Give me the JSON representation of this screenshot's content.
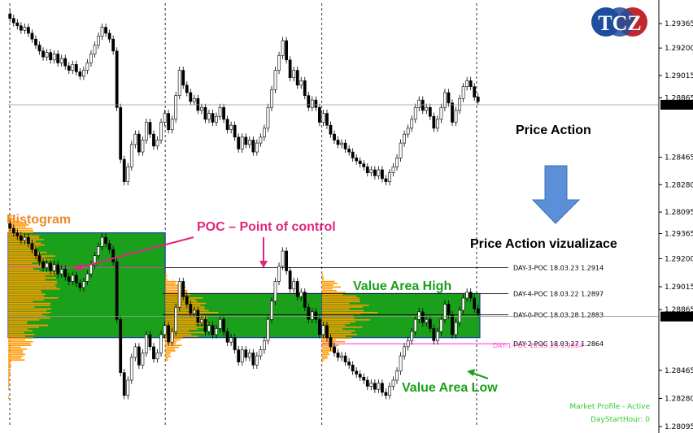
{
  "logo": {
    "text": "TCZ",
    "colors": [
      "#1f4e9c",
      "#c0282d"
    ]
  },
  "chart_data": [
    {
      "type": "candlestick",
      "title": "",
      "y_ticks": [
        "1.29365",
        "1.29200",
        "1.29015",
        "1.28865",
        "1.28465",
        "1.28280",
        "1.28095"
      ],
      "current_price": "1.28818",
      "ylim": [
        1.2809,
        1.2948
      ],
      "grid": false,
      "day_separators": 4,
      "close": [
        1.294,
        1.2937,
        1.2935,
        1.2932,
        1.2934,
        1.293,
        1.2926,
        1.2922,
        1.2918,
        1.2914,
        1.2917,
        1.2912,
        1.2916,
        1.291,
        1.2913,
        1.2908,
        1.2905,
        1.2909,
        1.2904,
        1.2901,
        1.2905,
        1.291,
        1.2916,
        1.2922,
        1.2928,
        1.2934,
        1.293,
        1.2926,
        1.2918,
        1.288,
        1.2845,
        1.283,
        1.284,
        1.2855,
        1.2862,
        1.285,
        1.2858,
        1.287,
        1.2862,
        1.2854,
        1.2858,
        1.287,
        1.2876,
        1.2865,
        1.2872,
        1.2888,
        1.2905,
        1.2895,
        1.289,
        1.2884,
        1.2886,
        1.2878,
        1.288,
        1.2872,
        1.2876,
        1.287,
        1.2874,
        1.288,
        1.2872,
        1.2865,
        1.2868,
        1.286,
        1.2852,
        1.286,
        1.2855,
        1.2858,
        1.285,
        1.2856,
        1.286,
        1.2866,
        1.288,
        1.2892,
        1.2905,
        1.2915,
        1.2925,
        1.2912,
        1.29,
        1.2905,
        1.2895,
        1.2898,
        1.2888,
        1.288,
        1.2885,
        1.288,
        1.287,
        1.2876,
        1.2868,
        1.2862,
        1.2858,
        1.2855,
        1.2856,
        1.2852,
        1.285,
        1.2846,
        1.2844,
        1.2842,
        1.284,
        1.2836,
        1.2838,
        1.2834,
        1.2838,
        1.2832,
        1.283,
        1.2836,
        1.284,
        1.2846,
        1.2856,
        1.2862,
        1.2866,
        1.2872,
        1.288,
        1.2885,
        1.2878,
        1.288,
        1.2874,
        1.2866,
        1.2872,
        1.288,
        1.289,
        1.2883,
        1.287,
        1.2878,
        1.2886,
        1.2894,
        1.2898,
        1.2894,
        1.2887,
        1.2884
      ]
    },
    {
      "type": "market_profile",
      "y_ticks": [
        "1.29365",
        "1.29200",
        "1.29015",
        "1.28865",
        "1.28465",
        "1.28280",
        "1.28095"
      ],
      "current_price": "1.28819",
      "ylim": [
        1.2809,
        1.2948
      ],
      "close": [
        1.294,
        1.2937,
        1.2935,
        1.2932,
        1.2934,
        1.293,
        1.2926,
        1.2922,
        1.2918,
        1.2914,
        1.2917,
        1.2912,
        1.2916,
        1.291,
        1.2913,
        1.2908,
        1.2905,
        1.2909,
        1.2904,
        1.2901,
        1.2905,
        1.291,
        1.2916,
        1.2922,
        1.2928,
        1.2934,
        1.293,
        1.2926,
        1.2918,
        1.288,
        1.2845,
        1.283,
        1.284,
        1.2855,
        1.2862,
        1.285,
        1.2858,
        1.287,
        1.2862,
        1.2854,
        1.2858,
        1.287,
        1.2876,
        1.2865,
        1.2872,
        1.2888,
        1.2905,
        1.2895,
        1.289,
        1.2884,
        1.2886,
        1.2878,
        1.288,
        1.2872,
        1.2876,
        1.287,
        1.2874,
        1.288,
        1.2872,
        1.2865,
        1.2868,
        1.286,
        1.2852,
        1.286,
        1.2855,
        1.2858,
        1.285,
        1.2856,
        1.286,
        1.2866,
        1.288,
        1.2892,
        1.2905,
        1.2915,
        1.2925,
        1.2912,
        1.29,
        1.2905,
        1.2895,
        1.2898,
        1.2888,
        1.288,
        1.2885,
        1.288,
        1.287,
        1.2876,
        1.2868,
        1.2862,
        1.2858,
        1.2855,
        1.2856,
        1.2852,
        1.285,
        1.2846,
        1.2844,
        1.2842,
        1.284,
        1.2836,
        1.2838,
        1.2834,
        1.2838,
        1.2832,
        1.283,
        1.2836,
        1.284,
        1.2846,
        1.2856,
        1.2862,
        1.2866,
        1.2872,
        1.288,
        1.2885,
        1.2878,
        1.288,
        1.2874,
        1.2866,
        1.2872,
        1.288,
        1.289,
        1.2883,
        1.287,
        1.2878,
        1.2886,
        1.2894,
        1.2898,
        1.2894,
        1.2887,
        1.2884
      ],
      "value_areas": [
        {
          "high": 1.2937,
          "low": 1.2868
        },
        {
          "high": 1.2897,
          "low": 1.2868
        },
        {
          "high": 1.2897,
          "low": 1.2868
        }
      ],
      "poc_lines": [
        {
          "label": "DAY-3-POC 18.03.23 1.2914",
          "price": 1.2914
        },
        {
          "label": "DAY-4-POC 18.03.22 1.2897",
          "price": 1.2897
        },
        {
          "label": "DAY-0-POC 18.03.28 1.2883",
          "price": 1.2883
        },
        {
          "label": "DAY-2-POC 18.03.27 1.2864",
          "price": 1.2864
        }
      ],
      "overlap_label": "DAY-1-POC 18.03.26 1.2864",
      "status": [
        "Market Profile - Active",
        "DayStartHour: 0"
      ]
    }
  ],
  "annotations": {
    "price_action": "Price Action",
    "price_action_viz": "Price Action vizualizace",
    "histogram": "Histogram",
    "poc": "POC – Point of control",
    "va_high": "Value Area High",
    "va_low": "Value Area Low"
  },
  "colors": {
    "candle_body": "#00ff00",
    "candle_outline": "#000000",
    "value_area": "#1aa01a",
    "histogram": "#ff9900",
    "poc_line": "#ff33cc",
    "va_edge": "#1a3fa8",
    "arrow": "#5b8fd8",
    "orange_text": "#f08a24",
    "pink_text": "#e0267f",
    "green_text": "#1aa01a",
    "status_text": "#33cc33"
  }
}
